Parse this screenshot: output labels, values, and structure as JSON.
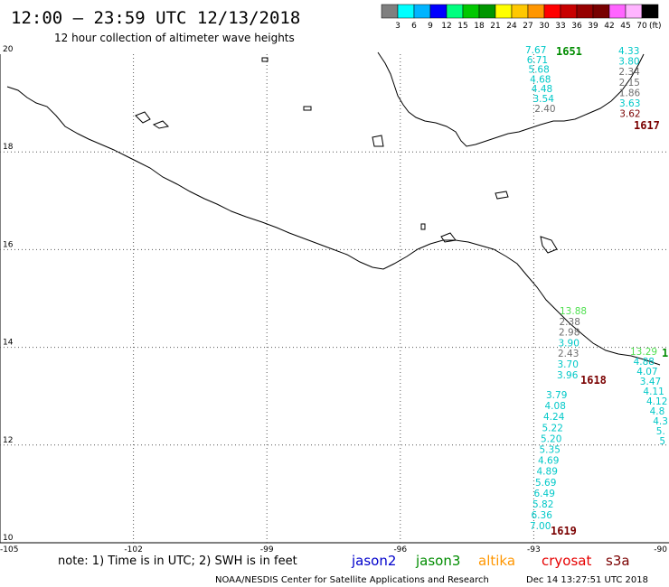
{
  "title": "12:00 – 23:59 UTC 12/13/2018",
  "subtitle": "12 hour collection of altimeter wave heights",
  "colorscale": {
    "labels": [
      "3",
      "6",
      "9",
      "12",
      "15",
      "18",
      "21",
      "24",
      "27",
      "30",
      "33",
      "36",
      "39",
      "42",
      "45",
      "70"
    ],
    "unit": "(ft)",
    "colors": [
      "#7f7f7f",
      "#00ffff",
      "#00b4ff",
      "#0000ff",
      "#00ff7f",
      "#00c800",
      "#009600",
      "#ffff00",
      "#ffc800",
      "#ff9600",
      "#ff0000",
      "#c80000",
      "#960000",
      "#780000",
      "#ff64ff",
      "#ffb4ff",
      "#000000"
    ]
  },
  "axes": {
    "x_labels": [
      "-105",
      "-102",
      "-99",
      "-96",
      "-93",
      "-90"
    ],
    "x_values": [
      -105,
      -102,
      -99,
      -96,
      -93,
      -90
    ],
    "y_labels": [
      "20",
      "18",
      "16",
      "14",
      "12",
      "10"
    ],
    "y_values": [
      20,
      18,
      16,
      14,
      12,
      10
    ]
  },
  "passes": [
    {
      "id": "1651",
      "color": "#008c00"
    },
    {
      "id": "1617",
      "color": "#7a0000"
    },
    {
      "id": "1618",
      "color": "#7a0000"
    },
    {
      "id": "1619",
      "color": "#7a0000"
    }
  ],
  "tracks": {
    "top_left": [
      {
        "v": "7.67",
        "c": "#00c8c8"
      },
      {
        "v": "6.71",
        "c": "#00c8c8"
      },
      {
        "v": "5.68",
        "c": "#00c8c8"
      },
      {
        "v": "4.68",
        "c": "#00c8c8"
      },
      {
        "v": "4.48",
        "c": "#00c8c8"
      },
      {
        "v": "3.54",
        "c": "#00c8c8"
      },
      {
        "v": "2.40",
        "c": "#6e6e6e"
      }
    ],
    "top_right": [
      {
        "v": "4.33",
        "c": "#00c8c8"
      },
      {
        "v": "3.80",
        "c": "#00c8c8"
      },
      {
        "v": "2.34",
        "c": "#6e6e6e"
      },
      {
        "v": "2.15",
        "c": "#6e6e6e"
      },
      {
        "v": "1.86",
        "c": "#6e6e6e"
      },
      {
        "v": "3.63",
        "c": "#00c8c8"
      },
      {
        "v": "3.62",
        "c": "#7a0000"
      }
    ],
    "mid_upper": [
      {
        "v": "13.88",
        "c": "#50e050"
      },
      {
        "v": "2.38",
        "c": "#6e6e6e"
      },
      {
        "v": "2.98",
        "c": "#6e6e6e"
      },
      {
        "v": "3.90",
        "c": "#00c8c8"
      },
      {
        "v": "2.43",
        "c": "#6e6e6e"
      },
      {
        "v": "3.70",
        "c": "#00c8c8"
      },
      {
        "v": "3.96",
        "c": "#00c8c8"
      }
    ],
    "mid_lower": [
      {
        "v": "3.79",
        "c": "#00c8c8"
      },
      {
        "v": "4.08",
        "c": "#00c8c8"
      },
      {
        "v": "4.24",
        "c": "#00c8c8"
      },
      {
        "v": "5.22",
        "c": "#00c8c8"
      },
      {
        "v": "5.20",
        "c": "#00c8c8"
      },
      {
        "v": "5.35",
        "c": "#00c8c8"
      },
      {
        "v": "4.69",
        "c": "#00c8c8"
      },
      {
        "v": "4.89",
        "c": "#00c8c8"
      },
      {
        "v": "5.69",
        "c": "#00c8c8"
      },
      {
        "v": "6.49",
        "c": "#00c8c8"
      },
      {
        "v": "5.82",
        "c": "#00c8c8"
      },
      {
        "v": "6.36",
        "c": "#00c8c8"
      },
      {
        "v": "7.00",
        "c": "#00c8c8"
      }
    ],
    "right": [
      {
        "v": "13.29",
        "c": "#50e050"
      },
      {
        "v": "4.88",
        "c": "#00c8c8"
      },
      {
        "v": "4.07",
        "c": "#00c8c8"
      },
      {
        "v": "3.47",
        "c": "#00c8c8"
      },
      {
        "v": "4.11",
        "c": "#00c8c8"
      },
      {
        "v": "4.12",
        "c": "#00c8c8"
      },
      {
        "v": "4.8",
        "c": "#00c8c8"
      },
      {
        "v": "4.3",
        "c": "#00c8c8"
      },
      {
        "v": "5.",
        "c": "#00c8c8"
      },
      {
        "v": "5",
        "c": "#00c8c8"
      }
    ]
  },
  "right_edge_label": {
    "v": "1",
    "c": "#008c00"
  },
  "note": "note: 1) Time is in UTC; 2) SWH is in feet",
  "satellites": [
    {
      "name": "jason2",
      "color": "#0000cc"
    },
    {
      "name": "jason3",
      "color": "#008c00"
    },
    {
      "name": "altika",
      "color": "#ff9600"
    },
    {
      "name": "cryosat",
      "color": "#e60000"
    },
    {
      "name": "s3a",
      "color": "#7a0000"
    }
  ],
  "credit_left": "NOAA/NESDIS Center for Satellite Applications and Research",
  "credit_right": "Dec 14 13:27:51 UTC 2018"
}
